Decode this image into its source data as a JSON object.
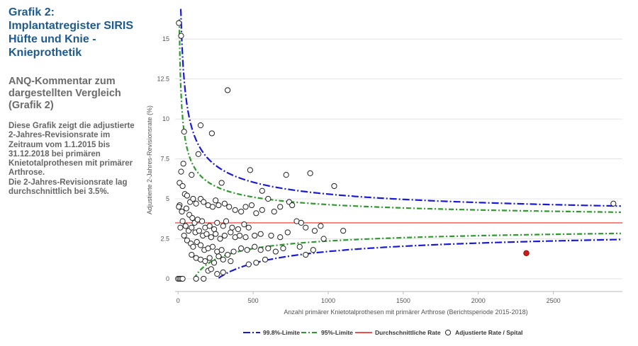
{
  "sidebar": {
    "title": "Grafik 2:\nImplantatregister SIRIS\nHüfte und Knie -\nKnieprothetik",
    "subtitle": "ANQ-Kommentar zum\ndargestellten Vergleich\n(Grafik 2)",
    "body": "Diese Grafik zeigt die adjustierte\n2-Jahres-Revisionsrate im\nZeitraum vom 1.1.2015 bis\n31.12.2018 bei primären\nKnietotalprothesen mit primärer\nArthrose.\nDie 2-Jahres-Revisionsrate lag\ndurchschnittlich bei 3.5%."
  },
  "colors": {
    "limit998": "#1a1ad6",
    "limit95": "#2e9a2e",
    "average": "#f0504a",
    "marker_edge": "#222222",
    "highlight": "#d11a1a",
    "grid": "#dddddd"
  },
  "chart_data": {
    "type": "scatter",
    "xlabel": "Anzahl primärer Knietotalprothesen mit primärer Arthrose (Berichtsperiode 2015-2018)",
    "ylabel": "Adjustierte 2-Jahres-Revisionsrate (%)",
    "xlim": [
      -20,
      2960
    ],
    "ylim": [
      -0.8,
      17
    ],
    "xticks": [
      0,
      500,
      1000,
      1500,
      2000,
      2500
    ],
    "xtick_labels": [
      "0",
      "500",
      "1000",
      "1500",
      "2000",
      "2500"
    ],
    "yticks": [
      0,
      2.5,
      5,
      7.5,
      10,
      12.5,
      15
    ],
    "ytick_labels": [
      "0",
      "2.5",
      "5",
      "7.5",
      "10",
      "12.5",
      "15"
    ],
    "grid": "horizontal",
    "average_rate": 3.5,
    "legend": {
      "position": "bottom",
      "entries": [
        "99.8%-Limite",
        "95%-Limite",
        "Durchschnittliche Rate",
        "Adjustierte Rate / Spital"
      ]
    },
    "highlighted_point": {
      "x": 2320,
      "y": 1.6
    },
    "points": [
      [
        5,
        16
      ],
      [
        20,
        15.2
      ],
      [
        40,
        9.2
      ],
      [
        150,
        9.6
      ],
      [
        225,
        9.1
      ],
      [
        330,
        11.8
      ],
      [
        35,
        7.2
      ],
      [
        135,
        7.8
      ],
      [
        480,
        6.8
      ],
      [
        880,
        6.6
      ],
      [
        720,
        6.5
      ],
      [
        1040,
        5.8
      ],
      [
        560,
        5.5
      ],
      [
        290,
        6
      ],
      [
        90,
        6.5
      ],
      [
        20,
        6.7
      ],
      [
        10,
        6
      ],
      [
        30,
        5.8
      ],
      [
        45,
        5.3
      ],
      [
        60,
        5.2
      ],
      [
        80,
        4.8
      ],
      [
        100,
        5
      ],
      [
        120,
        4.7
      ],
      [
        150,
        5
      ],
      [
        170,
        4.8
      ],
      [
        200,
        4.6
      ],
      [
        230,
        4.5
      ],
      [
        250,
        4.9
      ],
      [
        270,
        4.6
      ],
      [
        310,
        4.7
      ],
      [
        340,
        4.5
      ],
      [
        380,
        4.3
      ],
      [
        420,
        4.2
      ],
      [
        450,
        4.5
      ],
      [
        490,
        4.6
      ],
      [
        520,
        4.1
      ],
      [
        560,
        4.3
      ],
      [
        600,
        5
      ],
      [
        640,
        4.2
      ],
      [
        680,
        4.5
      ],
      [
        740,
        4.8
      ],
      [
        760,
        4.6
      ],
      [
        790,
        3.6
      ],
      [
        820,
        3.5
      ],
      [
        850,
        3.2
      ],
      [
        10,
        4.6
      ],
      [
        25,
        4.2
      ],
      [
        55,
        4.4
      ],
      [
        75,
        4
      ],
      [
        95,
        3.8
      ],
      [
        110,
        3.5
      ],
      [
        130,
        3.7
      ],
      [
        160,
        3.6
      ],
      [
        180,
        3.2
      ],
      [
        210,
        3.3
      ],
      [
        240,
        3.1
      ],
      [
        260,
        3.5
      ],
      [
        300,
        3.3
      ],
      [
        320,
        3.6
      ],
      [
        360,
        3.2
      ],
      [
        400,
        3.1
      ],
      [
        440,
        3.4
      ],
      [
        470,
        3.2
      ],
      [
        30,
        3.6
      ],
      [
        50,
        3.3
      ],
      [
        70,
        3
      ],
      [
        90,
        3.2
      ],
      [
        115,
        2.9
      ],
      [
        140,
        3
      ],
      [
        165,
        2.7
      ],
      [
        190,
        2.8
      ],
      [
        220,
        2.6
      ],
      [
        250,
        2.8
      ],
      [
        280,
        2.5
      ],
      [
        310,
        2.7
      ],
      [
        350,
        2.9
      ],
      [
        380,
        2.6
      ],
      [
        410,
        2.7
      ],
      [
        450,
        2.6
      ],
      [
        510,
        2.7
      ],
      [
        550,
        2.8
      ],
      [
        620,
        2.7
      ],
      [
        680,
        2.6
      ],
      [
        730,
        2.9
      ],
      [
        910,
        3
      ],
      [
        950,
        3.3
      ],
      [
        1100,
        3
      ],
      [
        60,
        2.4
      ],
      [
        85,
        2.2
      ],
      [
        100,
        2
      ],
      [
        125,
        2.3
      ],
      [
        150,
        2.1
      ],
      [
        175,
        1.8
      ],
      [
        200,
        1.9
      ],
      [
        230,
        2
      ],
      [
        260,
        1.7
      ],
      [
        290,
        1.8
      ],
      [
        330,
        1.5
      ],
      [
        370,
        1.7
      ],
      [
        420,
        1.9
      ],
      [
        460,
        1.8
      ],
      [
        510,
        2
      ],
      [
        550,
        1.8
      ],
      [
        600,
        1.9
      ],
      [
        650,
        1.7
      ],
      [
        700,
        1.9
      ],
      [
        810,
        2
      ],
      [
        850,
        1.5
      ],
      [
        900,
        1.8
      ],
      [
        970,
        2.5
      ],
      [
        90,
        1.5
      ],
      [
        120,
        1.3
      ],
      [
        150,
        1.2
      ],
      [
        180,
        1.1
      ],
      [
        210,
        1.3
      ],
      [
        240,
        1
      ],
      [
        270,
        1.4
      ],
      [
        300,
        1.2
      ],
      [
        350,
        1.1
      ],
      [
        470,
        0.9
      ],
      [
        520,
        1
      ],
      [
        580,
        1.2
      ],
      [
        200,
        0.5
      ],
      [
        220,
        0.6
      ],
      [
        260,
        0.3
      ],
      [
        300,
        0.4
      ],
      [
        0,
        0
      ],
      [
        10,
        0
      ],
      [
        20,
        0
      ],
      [
        30,
        0
      ],
      [
        120,
        0
      ],
      [
        170,
        0
      ],
      [
        2900,
        4.7
      ],
      [
        5,
        4.5
      ],
      [
        15,
        3.2
      ],
      [
        40,
        2.7
      ]
    ]
  }
}
